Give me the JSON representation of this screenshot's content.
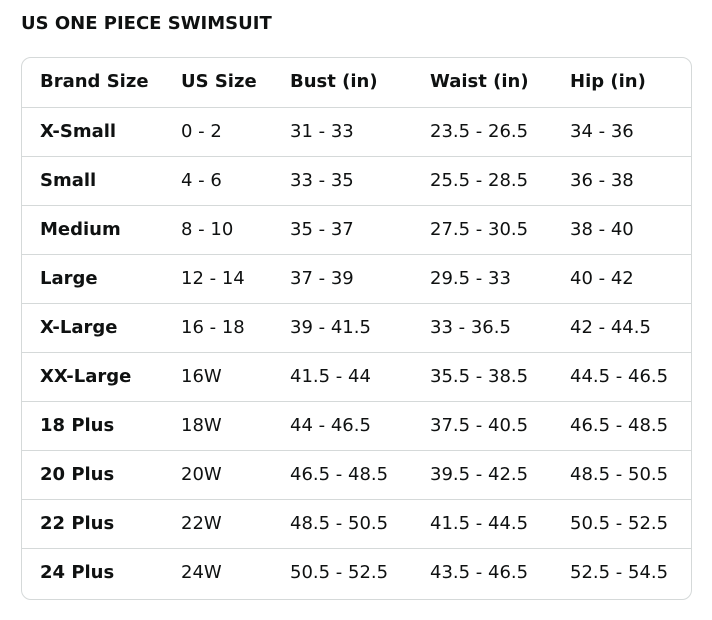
{
  "title": "US ONE PIECE SWIMSUIT",
  "table": {
    "headers": [
      "Brand Size",
      "US Size",
      "Bust (in)",
      "Waist (in)",
      "Hip (in)"
    ],
    "rows": [
      [
        "X-Small",
        "0 - 2",
        "31 - 33",
        "23.5 - 26.5",
        "34 - 36"
      ],
      [
        "Small",
        "4 - 6",
        "33 - 35",
        "25.5 - 28.5",
        "36 - 38"
      ],
      [
        "Medium",
        "8 - 10",
        "35 - 37",
        "27.5 - 30.5",
        "38 - 40"
      ],
      [
        "Large",
        "12 - 14",
        "37 - 39",
        "29.5 - 33",
        "40 - 42"
      ],
      [
        "X-Large",
        "16 - 18",
        "39 - 41.5",
        "33 - 36.5",
        "42 - 44.5"
      ],
      [
        "XX-Large",
        "16W",
        "41.5 - 44",
        "35.5 - 38.5",
        "44.5 - 46.5"
      ],
      [
        "18 Plus",
        "18W",
        "44 - 46.5",
        "37.5 - 40.5",
        "46.5 - 48.5"
      ],
      [
        "20 Plus",
        "20W",
        "46.5 - 48.5",
        "39.5 - 42.5",
        "48.5 - 50.5"
      ],
      [
        "22 Plus",
        "22W",
        "48.5 - 50.5",
        "41.5 - 44.5",
        "50.5 - 52.5"
      ],
      [
        "24 Plus",
        "24W",
        "50.5 - 52.5",
        "43.5 - 46.5",
        "52.5 - 54.5"
      ]
    ]
  },
  "colors": {
    "text": "#0f1111",
    "border": "#d5d9d9",
    "background": "#ffffff"
  }
}
